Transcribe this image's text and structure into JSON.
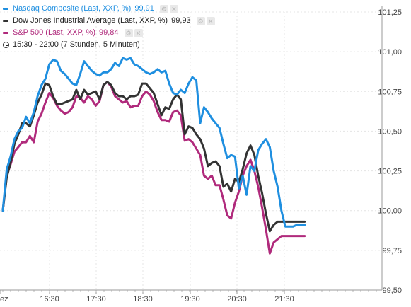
{
  "legend": [
    {
      "label": "Nasdaq Composite (Last, XXP, %)",
      "value": "99,91",
      "color": "#1f8fe0",
      "tools": true
    },
    {
      "label": "Dow Jones Industrial Average (Last, XXP, %)",
      "value": "99,93",
      "color": "#333333",
      "tools": true
    },
    {
      "label": "S&P 500 (Last, XXP, %)",
      "value": "99,84",
      "color": "#b02a7c",
      "tools": true
    }
  ],
  "timeframe": "15:30 - 22:00 (7 Stunden, 5 Minuten)",
  "icons": {
    "clock": "clock-icon",
    "settings": "gear-icon",
    "close": "close-icon"
  },
  "chart_data": {
    "type": "line",
    "x_tick_labels": [
      "ez",
      "16:30",
      "17:30",
      "18:30",
      "19:30",
      "20:30",
      "21:30"
    ],
    "y_tick_labels": [
      "101,25",
      "101,00",
      "100,75",
      "100,50",
      "100,25",
      "100,00",
      "99,75",
      "99,50"
    ],
    "ylim": [
      99.5,
      101.25
    ],
    "grid": true,
    "x": [
      "15:30",
      "15:35",
      "15:40",
      "15:45",
      "15:50",
      "15:55",
      "16:00",
      "16:05",
      "16:10",
      "16:15",
      "16:20",
      "16:25",
      "16:30",
      "16:35",
      "16:40",
      "16:45",
      "16:50",
      "16:55",
      "17:00",
      "17:05",
      "17:10",
      "17:15",
      "17:20",
      "17:25",
      "17:30",
      "17:35",
      "17:40",
      "17:45",
      "17:50",
      "17:55",
      "18:00",
      "18:05",
      "18:10",
      "18:15",
      "18:20",
      "18:25",
      "18:30",
      "18:35",
      "18:40",
      "18:45",
      "18:50",
      "18:55",
      "19:00",
      "19:05",
      "19:10",
      "19:15",
      "19:20",
      "19:25",
      "19:30",
      "19:35",
      "19:40",
      "19:45",
      "19:50",
      "19:55",
      "20:00",
      "20:05",
      "20:10",
      "20:15",
      "20:20",
      "20:25",
      "20:30",
      "20:35",
      "20:40",
      "20:45",
      "20:50",
      "20:55",
      "21:00",
      "21:05",
      "21:10",
      "21:15",
      "21:20",
      "21:25",
      "21:30",
      "21:35",
      "21:40",
      "21:45",
      "21:50",
      "21:55",
      "22:00"
    ],
    "series": [
      {
        "name": "Nasdaq Composite (Last, XXP, %)",
        "color": "#1f8fe0",
        "values": [
          100.0,
          100.26,
          100.34,
          100.45,
          100.5,
          100.52,
          100.59,
          100.55,
          100.62,
          100.72,
          100.79,
          100.83,
          100.92,
          100.95,
          100.94,
          100.88,
          100.86,
          100.83,
          100.8,
          100.79,
          100.86,
          100.94,
          100.91,
          100.88,
          100.86,
          100.85,
          100.87,
          100.87,
          100.89,
          100.93,
          100.91,
          100.96,
          100.95,
          100.96,
          100.92,
          100.91,
          100.89,
          100.87,
          100.86,
          100.87,
          100.89,
          100.87,
          100.88,
          100.8,
          100.74,
          100.73,
          100.76,
          100.74,
          100.8,
          100.84,
          100.82,
          100.55,
          100.65,
          100.62,
          100.58,
          100.55,
          100.52,
          100.42,
          100.33,
          100.35,
          100.34,
          100.14,
          100.22,
          100.1,
          100.28,
          100.25,
          100.38,
          100.42,
          100.45,
          100.4,
          100.25,
          100.15,
          100.0,
          99.9,
          99.9,
          99.9,
          99.91,
          99.91,
          99.91
        ]
      },
      {
        "name": "Dow Jones Industrial Average (Last, XXP, %)",
        "color": "#333333",
        "values": [
          100.0,
          100.21,
          100.3,
          100.42,
          100.48,
          100.55,
          100.55,
          100.53,
          100.6,
          100.68,
          100.73,
          100.8,
          100.79,
          100.72,
          100.67,
          100.67,
          100.68,
          100.69,
          100.7,
          100.76,
          100.7,
          100.76,
          100.73,
          100.74,
          100.75,
          100.7,
          100.79,
          100.81,
          100.79,
          100.74,
          100.72,
          100.72,
          100.7,
          100.72,
          100.72,
          100.73,
          100.8,
          100.8,
          100.77,
          100.74,
          100.67,
          100.6,
          100.65,
          100.64,
          100.7,
          100.73,
          100.7,
          100.48,
          100.53,
          100.52,
          100.48,
          100.45,
          100.39,
          100.28,
          100.3,
          100.31,
          100.28,
          100.15,
          100.17,
          100.12,
          100.2,
          100.18,
          100.26,
          100.36,
          100.41,
          100.35,
          100.22,
          100.11,
          99.98,
          99.87,
          99.91,
          99.93,
          99.93,
          99.93,
          99.93,
          99.93,
          99.93,
          99.93,
          99.93
        ]
      },
      {
        "name": "S&P 500 (Last, XXP, %)",
        "color": "#b02a7c",
        "values": [
          100.0,
          100.22,
          100.29,
          100.37,
          100.4,
          100.43,
          100.43,
          100.47,
          100.43,
          100.56,
          100.61,
          100.68,
          100.74,
          100.71,
          100.66,
          100.63,
          100.61,
          100.62,
          100.65,
          100.72,
          100.71,
          100.68,
          100.72,
          100.7,
          100.66,
          100.69,
          100.79,
          100.81,
          100.78,
          100.72,
          100.7,
          100.68,
          100.69,
          100.65,
          100.66,
          100.66,
          100.72,
          100.75,
          100.73,
          100.69,
          100.62,
          100.57,
          100.57,
          100.56,
          100.62,
          100.63,
          100.6,
          100.44,
          100.45,
          100.43,
          100.39,
          100.35,
          100.22,
          100.2,
          100.22,
          100.16,
          100.16,
          100.07,
          99.97,
          99.95,
          100.05,
          100.12,
          100.22,
          100.28,
          100.32,
          100.25,
          100.15,
          100.02,
          99.88,
          99.73,
          99.8,
          99.82,
          99.84,
          99.84,
          99.84,
          99.84,
          99.84,
          99.84,
          99.84
        ]
      }
    ]
  }
}
